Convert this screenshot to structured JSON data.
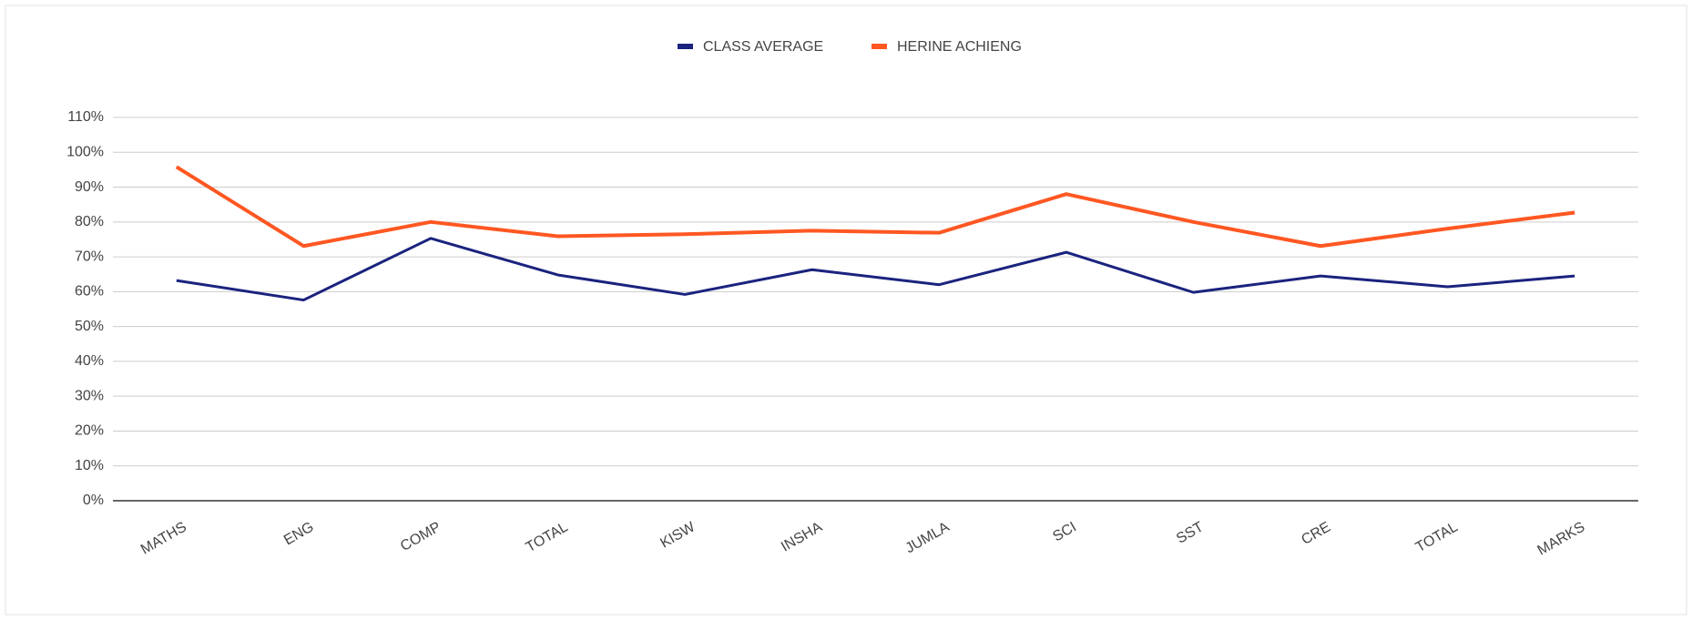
{
  "chart_data": {
    "type": "line",
    "categories": [
      "MATHS",
      "ENG",
      "COMP",
      "TOTAL",
      "KISW",
      "INSHA",
      "JUMLA",
      "SCI",
      "SST",
      "CRE",
      "TOTAL",
      "MARKS"
    ],
    "series": [
      {
        "name": "CLASS AVERAGE",
        "color": "#1a237e",
        "values": [
          63.2,
          57.6,
          75.3,
          64.8,
          59.2,
          66.3,
          62.0,
          71.3,
          59.8,
          64.5,
          61.4,
          64.5
        ]
      },
      {
        "name": "HERINE ACHIENG",
        "color": "#ff5722",
        "values": [
          95.8,
          73.1,
          80.0,
          75.9,
          76.5,
          77.5,
          76.9,
          88.0,
          80.0,
          73.1,
          78.1,
          82.7
        ]
      }
    ],
    "ylim": [
      0,
      110
    ],
    "yticks": [
      {
        "value": 0,
        "label": "0%"
      },
      {
        "value": 10,
        "label": "10%"
      },
      {
        "value": 20,
        "label": "20%"
      },
      {
        "value": 30,
        "label": "30%"
      },
      {
        "value": 40,
        "label": "40%"
      },
      {
        "value": 50,
        "label": "50%"
      },
      {
        "value": 60,
        "label": "60%"
      },
      {
        "value": 70,
        "label": "70%"
      },
      {
        "value": 80,
        "label": "80%"
      },
      {
        "value": 90,
        "label": "90%"
      },
      {
        "value": 100,
        "label": "100%"
      },
      {
        "value": 110,
        "label": "110%"
      }
    ],
    "grid": true,
    "legend": "top"
  }
}
